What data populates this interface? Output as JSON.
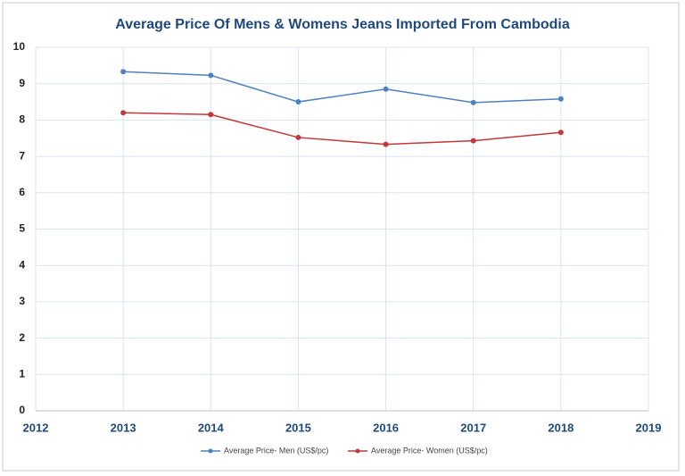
{
  "chart_data": {
    "type": "line",
    "title": "Average Price Of Mens & Womens Jeans Imported From Cambodia",
    "x": [
      2013,
      2014,
      2015,
      2016,
      2017,
      2018
    ],
    "series": [
      {
        "name": "Average Price- Men (US$/pc)",
        "color": "#4f81bd",
        "values": [
          9.33,
          9.23,
          8.5,
          8.85,
          8.48,
          8.58
        ]
      },
      {
        "name": "Average Price- Women (US$/pc)",
        "color": "#c0393b",
        "values": [
          8.2,
          8.15,
          7.52,
          7.33,
          7.43,
          7.66
        ]
      }
    ],
    "xlim": [
      2012,
      2019
    ],
    "xticks": [
      2012,
      2013,
      2014,
      2015,
      2016,
      2017,
      2018,
      2019
    ],
    "ylim": [
      0,
      10
    ],
    "yticks": [
      0,
      1,
      2,
      3,
      4,
      5,
      6,
      7,
      8,
      9,
      10
    ],
    "grid": true,
    "legend": "bottom"
  }
}
